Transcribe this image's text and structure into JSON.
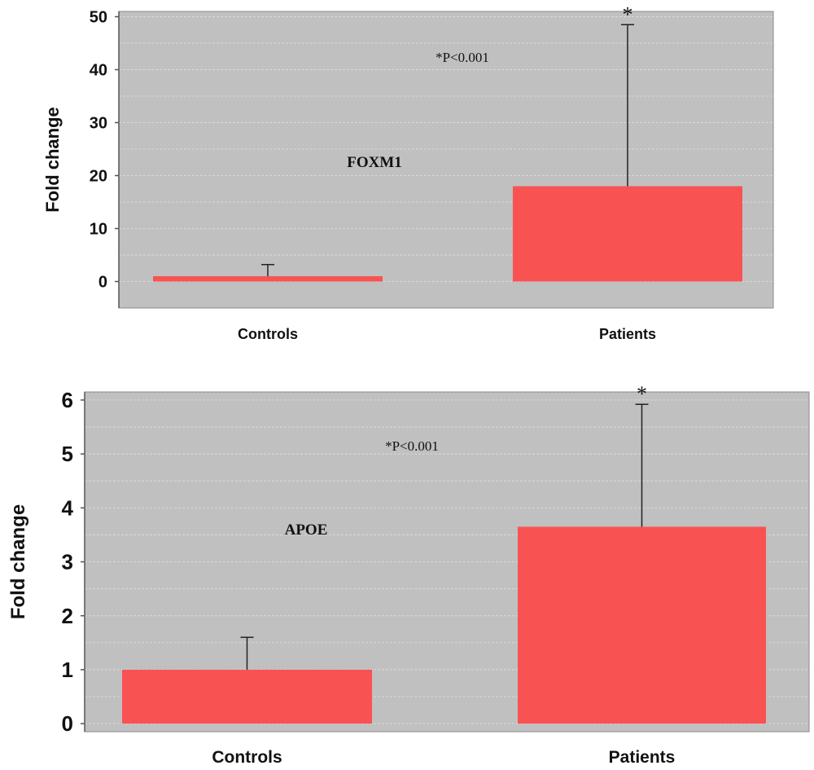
{
  "chart_data": [
    {
      "type": "bar",
      "categories": [
        "Controls",
        "Patients"
      ],
      "values": [
        1,
        18
      ],
      "error_upper": [
        3.2,
        48.5
      ],
      "ylabel": "Fold change",
      "ylim": [
        -5,
        51
      ],
      "yticks": [
        0,
        10,
        20,
        30,
        40,
        50
      ],
      "annotations": {
        "gene": "FOXM1",
        "pvalue": "*P<0.001",
        "marker": "*"
      },
      "grid": true,
      "colors": {
        "bar": "#f85252",
        "background": "#c0c0c0",
        "grid": "#d9d9d9"
      }
    },
    {
      "type": "bar",
      "categories": [
        "Controls",
        "Patients"
      ],
      "values": [
        1,
        3.65
      ],
      "error_upper": [
        1.6,
        5.92
      ],
      "ylabel": "Fold change",
      "ylim": [
        -0.15,
        6.15
      ],
      "yticks": [
        0,
        1,
        2,
        3,
        4,
        5,
        6
      ],
      "annotations": {
        "gene": "APOE",
        "pvalue": "*P<0.001",
        "marker": "*"
      },
      "grid": true,
      "colors": {
        "bar": "#f85252",
        "background": "#c0c0c0",
        "grid": "#d9d9d9"
      }
    }
  ]
}
